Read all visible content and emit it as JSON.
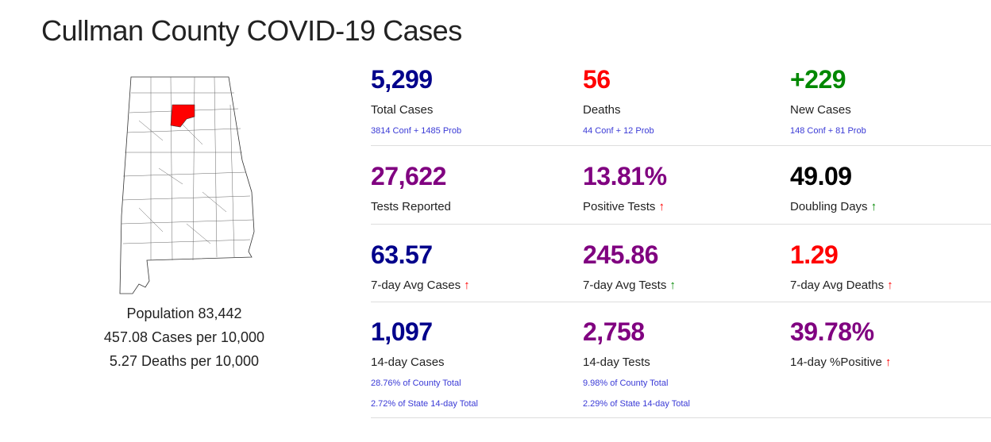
{
  "title": "Cullman County COVID-19 Cases",
  "colors": {
    "blue": "#00008b",
    "red": "#ff0000",
    "green": "#008800",
    "purple": "#800080",
    "black": "#000000",
    "up_red": "#ff0000",
    "up_green": "#008800"
  },
  "left": {
    "population": "Population 83,442",
    "cases_per": "457.08 Cases per 10,000",
    "deaths_per": "5.27 Deaths per 10,000"
  },
  "stats": [
    {
      "value": "5,299",
      "label": "Total Cases",
      "sub": "3814 Conf + 1485 Prob"
    },
    {
      "value": "56",
      "label": "Deaths",
      "sub": "44 Conf + 12 Prob"
    },
    {
      "value": "+229",
      "label": "New Cases",
      "sub": "148 Conf + 81 Prob"
    },
    {
      "value": "27,622",
      "label": "Tests Reported"
    },
    {
      "value": "13.81%",
      "label": "Positive Tests",
      "arrow": "up-red"
    },
    {
      "value": "49.09",
      "label": "Doubling Days",
      "arrow": "up-green"
    },
    {
      "value": "63.57",
      "label": "7-day Avg Cases",
      "arrow": "up-red"
    },
    {
      "value": "245.86",
      "label": "7-day Avg Tests",
      "arrow": "up-green"
    },
    {
      "value": "1.29",
      "label": "7-day Avg Deaths",
      "arrow": "up-red"
    },
    {
      "value": "1,097",
      "label": "14-day Cases",
      "sub": "28.76% of County Total",
      "sub2": "2.72% of State 14-day Total"
    },
    {
      "value": "2,758",
      "label": "14-day Tests",
      "sub": "9.98% of County Total",
      "sub2": "2.29% of State 14-day Total"
    },
    {
      "value": "39.78%",
      "label": "14-day %Positive",
      "arrow": "up-red"
    }
  ],
  "arrow_glyph": "↑"
}
